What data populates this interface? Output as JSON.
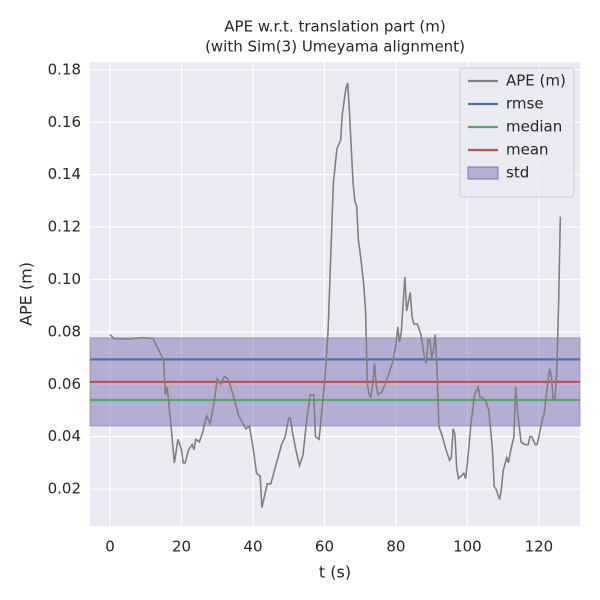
{
  "chart_data": {
    "type": "line",
    "title": [
      "APE w.r.t. translation part (m)",
      "(with Sim(3) Umeyama alignment)"
    ],
    "xlabel": "t (s)",
    "ylabel": "APE (m)",
    "xlim": [
      -5.6,
      131.5
    ],
    "ylim": [
      0.0059,
      0.183
    ],
    "xticks": [
      0,
      20,
      40,
      60,
      80,
      100,
      120
    ],
    "yticks": [
      0.02,
      0.04,
      0.06,
      0.08,
      {
        "value": 0.1,
        "label": "0.10"
      },
      0.12,
      0.14,
      0.16,
      0.18
    ],
    "grid": true,
    "legend": "upper right",
    "series": [
      {
        "name": "APE (m)",
        "color": "#808080",
        "x": [
          0,
          1,
          5,
          9,
          12,
          14,
          15,
          15.5,
          16,
          17,
          18,
          19,
          20,
          20.5,
          21,
          22,
          23,
          23.5,
          24,
          25,
          26,
          27,
          28,
          29,
          30,
          31,
          32,
          33,
          34,
          36,
          38,
          39,
          40,
          41,
          42,
          42.5,
          43,
          44,
          45,
          46,
          48,
          49,
          50,
          50.5,
          51,
          52,
          53,
          54,
          55,
          56,
          57,
          57.5,
          58.5,
          59,
          60,
          61,
          62,
          62.5,
          63.5,
          64.5,
          65,
          65.5,
          66,
          66.5,
          67,
          67.5,
          68,
          68.5,
          69,
          69.5,
          70,
          71,
          71.5,
          72,
          72.5,
          73,
          73.5,
          74,
          74.5,
          75,
          76,
          77,
          78,
          79,
          80,
          80.5,
          81,
          81.5,
          82.5,
          83,
          84,
          84.5,
          85,
          86,
          87,
          88,
          88.5,
          89,
          89.5,
          90,
          90.5,
          91,
          91.5,
          92,
          93,
          94,
          95,
          95.5,
          96,
          96.5,
          97,
          97.5,
          99,
          99.5,
          100,
          101,
          102,
          103,
          103.5,
          104,
          105,
          106,
          107,
          107.5,
          108,
          109,
          109.5,
          110,
          111,
          111.5,
          112,
          112.5,
          113,
          113.5,
          114,
          115,
          116,
          117,
          117.5,
          118,
          119,
          119.5,
          120,
          121,
          121.5,
          122,
          123,
          123.5,
          124,
          124.5,
          125,
          125.5,
          126
        ],
        "values": [
          0.079,
          0.0775,
          0.0773,
          0.0778,
          0.0775,
          0.072,
          0.069,
          0.056,
          0.059,
          0.045,
          0.03,
          0.039,
          0.035,
          0.03,
          0.03,
          0.035,
          0.037,
          0.035,
          0.039,
          0.038,
          0.042,
          0.048,
          0.045,
          0.052,
          0.062,
          0.06,
          0.063,
          0.062,
          0.058,
          0.048,
          0.043,
          0.044,
          0.036,
          0.026,
          0.025,
          0.013,
          0.016,
          0.022,
          0.022,
          0.027,
          0.037,
          0.04,
          0.047,
          0.047,
          0.042,
          0.035,
          0.029,
          0.033,
          0.046,
          0.056,
          0.056,
          0.04,
          0.039,
          0.046,
          0.06,
          0.08,
          0.118,
          0.137,
          0.15,
          0.153,
          0.163,
          0.168,
          0.173,
          0.175,
          0.164,
          0.15,
          0.137,
          0.13,
          0.128,
          0.115,
          0.11,
          0.098,
          0.088,
          0.06,
          0.056,
          0.055,
          0.06,
          0.068,
          0.06,
          0.056,
          0.057,
          0.06,
          0.064,
          0.068,
          0.075,
          0.082,
          0.076,
          0.08,
          0.101,
          0.088,
          0.095,
          0.086,
          0.083,
          0.083,
          0.079,
          0.07,
          0.068,
          0.077,
          0.077,
          0.07,
          0.073,
          0.079,
          0.066,
          0.044,
          0.04,
          0.035,
          0.031,
          0.032,
          0.043,
          0.041,
          0.028,
          0.024,
          0.026,
          0.024,
          0.03,
          0.045,
          0.056,
          0.059,
          0.055,
          0.055,
          0.054,
          0.05,
          0.035,
          0.021,
          0.02,
          0.016,
          0.02,
          0.027,
          0.032,
          0.03,
          0.034,
          0.037,
          0.04,
          0.059,
          0.05,
          0.038,
          0.037,
          0.037,
          0.04,
          0.04,
          0.037,
          0.037,
          0.04,
          0.047,
          0.049,
          0.055,
          0.066,
          0.063,
          0.054,
          0.054,
          0.065,
          0.09,
          0.124
        ]
      }
    ],
    "hlines": [
      {
        "name": "rmse",
        "color": "#4c72b0",
        "value": 0.0695
      },
      {
        "name": "median",
        "color": "#55a868",
        "value": 0.054
      },
      {
        "name": "mean",
        "color": "#c44e52",
        "value": 0.0609
      }
    ],
    "bands": [
      {
        "name": "std",
        "color": "#8172b2",
        "range": [
          0.0441,
          0.0777
        ]
      }
    ]
  }
}
